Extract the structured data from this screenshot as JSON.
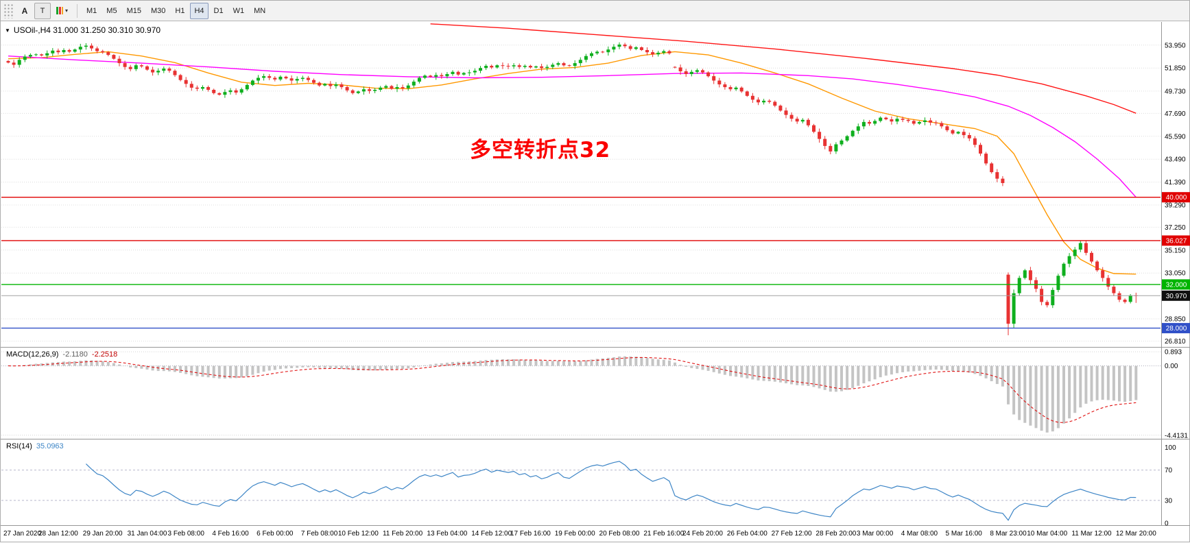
{
  "toolbar": {
    "arrow_tool_label": "A",
    "text_tool_label": "T",
    "dropdown_chevron": "▾",
    "timeframes": [
      {
        "label": "M1"
      },
      {
        "label": "M5"
      },
      {
        "label": "M15"
      },
      {
        "label": "M30"
      },
      {
        "label": "H1"
      },
      {
        "label": "H4",
        "active": true
      },
      {
        "label": "D1"
      },
      {
        "label": "W1"
      },
      {
        "label": "MN"
      }
    ]
  },
  "chart": {
    "collapse_arrow": "▼",
    "title_text": "USOil-,H4 31.000 31.250 30.310 30.970"
  },
  "chart_data": [
    {
      "type": "candlestick",
      "symbol": "USOil-",
      "timeframe": "H4",
      "last_bar_ohlc": [
        31.0,
        31.25,
        30.31,
        30.97
      ],
      "ylim": [
        26.4,
        55.95
      ],
      "y_ticks": [
        53.95,
        51.85,
        49.73,
        47.69,
        45.59,
        43.49,
        41.39,
        39.29,
        37.25,
        35.15,
        33.05,
        28.85,
        26.81
      ],
      "closes": [
        52.35,
        52.15,
        52.6,
        52.9,
        53.05,
        53.1,
        53.0,
        53.2,
        53.45,
        53.3,
        53.5,
        53.35,
        53.55,
        53.8,
        53.9,
        53.65,
        53.4,
        53.3,
        53.05,
        52.7,
        52.3,
        51.95,
        51.75,
        52.1,
        52.0,
        51.7,
        51.45,
        51.6,
        51.8,
        51.6,
        51.2,
        50.75,
        50.4,
        50.05,
        49.95,
        50.1,
        49.85,
        49.55,
        49.4,
        49.65,
        49.8,
        49.6,
        49.9,
        50.3,
        50.7,
        50.95,
        51.1,
        50.95,
        50.8,
        51.05,
        50.9,
        50.7,
        50.85,
        50.95,
        50.75,
        50.5,
        50.25,
        50.4,
        50.2,
        50.35,
        50.1,
        49.8,
        49.55,
        49.7,
        49.9,
        49.75,
        49.85,
        50.05,
        50.2,
        49.95,
        50.1,
        50.0,
        50.25,
        50.6,
        50.95,
        51.15,
        51.05,
        51.2,
        51.1,
        51.3,
        51.5,
        51.25,
        51.4,
        51.45,
        51.6,
        51.85,
        52.05,
        51.9,
        52.1,
        52.05,
        52.0,
        52.1,
        51.95,
        52.05,
        51.9,
        52.0,
        51.85,
        51.95,
        52.15,
        52.3,
        52.1,
        52.05,
        52.3,
        52.6,
        52.95,
        53.2,
        53.35,
        53.3,
        53.55,
        53.8,
        54.0,
        53.85,
        53.6,
        53.75,
        53.5,
        53.3,
        53.1,
        53.25,
        53.4,
        53.2,
        51.9,
        51.55,
        51.3,
        51.5,
        51.65,
        51.45,
        51.1,
        50.7,
        50.35,
        50.1,
        49.9,
        50.05,
        49.7,
        49.3,
        48.95,
        48.7,
        48.85,
        48.75,
        48.4,
        47.95,
        47.55,
        47.2,
        46.95,
        47.1,
        46.6,
        46.0,
        45.35,
        44.7,
        44.2,
        44.85,
        45.2,
        45.6,
        46.1,
        46.5,
        46.9,
        46.75,
        47.0,
        47.3,
        47.15,
        46.95,
        47.2,
        47.1,
        47.0,
        46.75,
        46.9,
        47.05,
        46.85,
        46.8,
        46.5,
        46.15,
        45.85,
        46.0,
        45.7,
        45.4,
        44.8,
        44.0,
        43.1,
        42.3,
        41.7,
        41.3,
        28.4,
        31.2,
        32.6,
        33.3,
        32.4,
        31.6,
        30.4,
        30.1,
        31.5,
        32.8,
        33.9,
        34.6,
        35.2,
        35.8,
        34.9,
        34.1,
        33.3,
        32.6,
        31.8,
        31.2,
        30.6,
        30.4,
        31.0,
        30.97
      ],
      "bar_overrides": {
        "120": {
          "open": 51.95
        },
        "180": {
          "open": 32.9,
          "high": 33.1,
          "low": 27.34
        },
        "193": {
          "high": 36.027
        },
        "203": {
          "open": 31.0,
          "high": 31.25,
          "low": 30.31
        }
      },
      "x_labels": [
        {
          "text": "27 Jan 2020",
          "bar": 0
        },
        {
          "text": "28 Jan 12:00",
          "bar": 9
        },
        {
          "text": "29 Jan 20:00",
          "bar": 17
        },
        {
          "text": "31 Jan 04:00",
          "bar": 25
        },
        {
          "text": "3 Feb 08:00",
          "bar": 32
        },
        {
          "text": "4 Feb 16:00",
          "bar": 40
        },
        {
          "text": "6 Feb 00:00",
          "bar": 48
        },
        {
          "text": "7 Feb 08:00",
          "bar": 56
        },
        {
          "text": "10 Feb 12:00",
          "bar": 63
        },
        {
          "text": "11 Feb 20:00",
          "bar": 71
        },
        {
          "text": "13 Feb 04:00",
          "bar": 79
        },
        {
          "text": "14 Feb 12:00",
          "bar": 87
        },
        {
          "text": "17 Feb 16:00",
          "bar": 94
        },
        {
          "text": "19 Feb 00:00",
          "bar": 102
        },
        {
          "text": "20 Feb 08:00",
          "bar": 110
        },
        {
          "text": "21 Feb 16:00",
          "bar": 118
        },
        {
          "text": "24 Feb 20:00",
          "bar": 125
        },
        {
          "text": "26 Feb 04:00",
          "bar": 133
        },
        {
          "text": "27 Feb 12:00",
          "bar": 141
        },
        {
          "text": "28 Feb 20:00",
          "bar": 149
        },
        {
          "text": "3 Mar 00:00",
          "bar": 156
        },
        {
          "text": "4 Mar 08:00",
          "bar": 164
        },
        {
          "text": "5 Mar 16:00",
          "bar": 172
        },
        {
          "text": "8 Mar 23:00",
          "bar": 180
        },
        {
          "text": "10 Mar 04:00",
          "bar": 187
        },
        {
          "text": "11 Mar 12:00",
          "bar": 195
        },
        {
          "text": "12 Mar 20:00",
          "bar": 203
        }
      ],
      "hlines": [
        {
          "price": 40.0,
          "color": "#e00000"
        },
        {
          "price": 36.027,
          "color": "#e00000"
        },
        {
          "price": 32.0,
          "color": "#00b400"
        },
        {
          "price": 28.0,
          "color": "#3050c8"
        }
      ],
      "current_price": {
        "price": 30.97,
        "line_color": "#a0a0a0",
        "tag_bg": "#101010"
      },
      "moving_averages": [
        {
          "name": "ma-fast-orange",
          "color": "#ff9800",
          "points": [
            [
              0,
              52.7
            ],
            [
              6,
              52.8
            ],
            [
              12,
              53.1
            ],
            [
              18,
              53.35
            ],
            [
              24,
              52.95
            ],
            [
              30,
              52.35
            ],
            [
              36,
              51.4
            ],
            [
              42,
              50.55
            ],
            [
              48,
              50.25
            ],
            [
              54,
              50.45
            ],
            [
              60,
              50.3
            ],
            [
              66,
              50.0
            ],
            [
              72,
              49.95
            ],
            [
              78,
              50.3
            ],
            [
              84,
              50.85
            ],
            [
              90,
              51.35
            ],
            [
              96,
              51.75
            ],
            [
              102,
              51.9
            ],
            [
              108,
              52.3
            ],
            [
              114,
              53.0
            ],
            [
              120,
              53.35
            ],
            [
              126,
              53.05
            ],
            [
              132,
              52.3
            ],
            [
              138,
              51.4
            ],
            [
              144,
              50.4
            ],
            [
              150,
              49.1
            ],
            [
              156,
              47.9
            ],
            [
              162,
              47.2
            ],
            [
              168,
              46.75
            ],
            [
              174,
              46.3
            ],
            [
              178,
              45.6
            ],
            [
              181,
              44.0
            ],
            [
              184,
              41.2
            ],
            [
              187,
              38.4
            ],
            [
              190,
              35.9
            ],
            [
              193,
              34.3
            ],
            [
              196,
              33.5
            ],
            [
              199,
              33.0
            ],
            [
              203,
              32.95
            ]
          ]
        },
        {
          "name": "ma-mid-magenta",
          "color": "#ff00ff",
          "points": [
            [
              0,
              52.95
            ],
            [
              12,
              52.6
            ],
            [
              24,
              52.3
            ],
            [
              36,
              51.95
            ],
            [
              48,
              51.55
            ],
            [
              60,
              51.25
            ],
            [
              72,
              51.05
            ],
            [
              84,
              50.95
            ],
            [
              96,
              51.0
            ],
            [
              108,
              51.15
            ],
            [
              120,
              51.35
            ],
            [
              132,
              51.4
            ],
            [
              144,
              51.15
            ],
            [
              152,
              50.85
            ],
            [
              160,
              50.35
            ],
            [
              168,
              49.75
            ],
            [
              174,
              49.2
            ],
            [
              180,
              48.35
            ],
            [
              184,
              47.5
            ],
            [
              188,
              46.4
            ],
            [
              192,
              45.1
            ],
            [
              196,
              43.5
            ],
            [
              200,
              41.7
            ],
            [
              203,
              40.0
            ]
          ]
        },
        {
          "name": "ma-slow-red",
          "color": "#ff1414",
          "points": [
            [
              76,
              55.9
            ],
            [
              90,
              55.5
            ],
            [
              106,
              54.9
            ],
            [
              122,
              54.3
            ],
            [
              138,
              53.6
            ],
            [
              154,
              52.75
            ],
            [
              170,
              51.8
            ],
            [
              178,
              51.2
            ],
            [
              186,
              50.4
            ],
            [
              194,
              49.3
            ],
            [
              199,
              48.5
            ],
            [
              203,
              47.7
            ]
          ]
        }
      ],
      "annotation": {
        "text": "多空转折点32",
        "color": "#fa0000"
      },
      "colors": {
        "bull": "#0faf1e",
        "bear": "#e83232"
      }
    },
    {
      "type": "bar",
      "name": "MACD",
      "label": "MACD(12,26,9)",
      "value_main": "-2.1180",
      "value_signal": "-2.2518",
      "params": [
        12,
        26,
        9
      ],
      "ylim": [
        -4.553,
        1.073
      ],
      "y_ticks": [
        {
          "v": 0.893,
          "label": "0.893"
        },
        {
          "v": 0,
          "label": "0.00"
        },
        {
          "v": -4.4131,
          "label": "-4.4131"
        }
      ],
      "histogram_color": "#c4c4c4",
      "signal_color": "#e01010"
    },
    {
      "type": "line",
      "name": "RSI",
      "label": "RSI(14)",
      "value": "35.0963",
      "period": 14,
      "levels": [
        70,
        30
      ],
      "y_ticks": [
        100,
        70,
        30,
        0
      ],
      "line_color": "#3d85c6"
    }
  ]
}
